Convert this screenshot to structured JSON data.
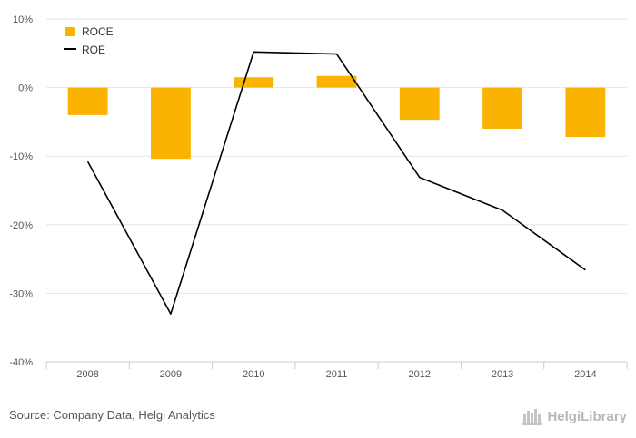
{
  "chart_data": {
    "type": "bar",
    "categories": [
      "2008",
      "2009",
      "2010",
      "2011",
      "2012",
      "2013",
      "2014"
    ],
    "series": [
      {
        "name": "ROCE",
        "kind": "bar",
        "color": "#f9b300",
        "values": [
          -4.0,
          -10.4,
          1.5,
          1.7,
          -4.7,
          -6.0,
          -7.2
        ]
      },
      {
        "name": "ROE",
        "kind": "line",
        "color": "#000000",
        "values": [
          -10.8,
          -33.0,
          5.2,
          4.9,
          -13.1,
          -17.9,
          -26.6
        ]
      }
    ],
    "ylim": [
      -40,
      10
    ],
    "yticks": [
      10,
      0,
      -10,
      -20,
      -30,
      -40
    ],
    "ytick_labels": [
      "10%",
      "0%",
      "-10%",
      "-20%",
      "-30%",
      "-40%"
    ],
    "grid": true,
    "legend_position": "top-left",
    "title": "",
    "xlabel": "",
    "ylabel": ""
  },
  "footer": {
    "source": "Source: Company Data, Helgi Analytics",
    "brand": "HelgiLibrary"
  },
  "colors": {
    "grid": "#e6e6e6",
    "axis": "#cccccc",
    "brand": "#b8b8b8"
  },
  "icons": {
    "brand": "library-logo-icon"
  }
}
